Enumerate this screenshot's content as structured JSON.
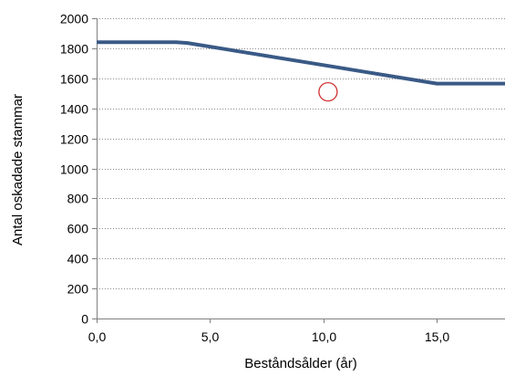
{
  "chart_data": {
    "type": "line",
    "title": "",
    "xlabel": "Beståndsålder (år)",
    "ylabel": "Antal oskadade stammar",
    "xlim": [
      0,
      18
    ],
    "ylim": [
      0,
      2000
    ],
    "x_ticks": [
      0,
      5,
      10,
      15
    ],
    "x_tick_labels": [
      "0,0",
      "5,0",
      "10,0",
      "15,0"
    ],
    "y_ticks": [
      0,
      200,
      400,
      600,
      800,
      1000,
      1200,
      1400,
      1600,
      1800,
      2000
    ],
    "y_tick_labels": [
      "0",
      "200",
      "400",
      "600",
      "800",
      "1000",
      "1200",
      "1400",
      "1600",
      "1800",
      "2000"
    ],
    "grid": "horizontal dotted",
    "series": [
      {
        "color": "#3a5a86",
        "x": [
          0,
          3.5,
          4,
          15,
          18
        ],
        "y": [
          1840,
          1840,
          1835,
          1565,
          1565
        ]
      }
    ],
    "annotations": [
      {
        "shape": "circle",
        "x": 10.2,
        "y": 1510,
        "color": "#d03030"
      }
    ]
  }
}
